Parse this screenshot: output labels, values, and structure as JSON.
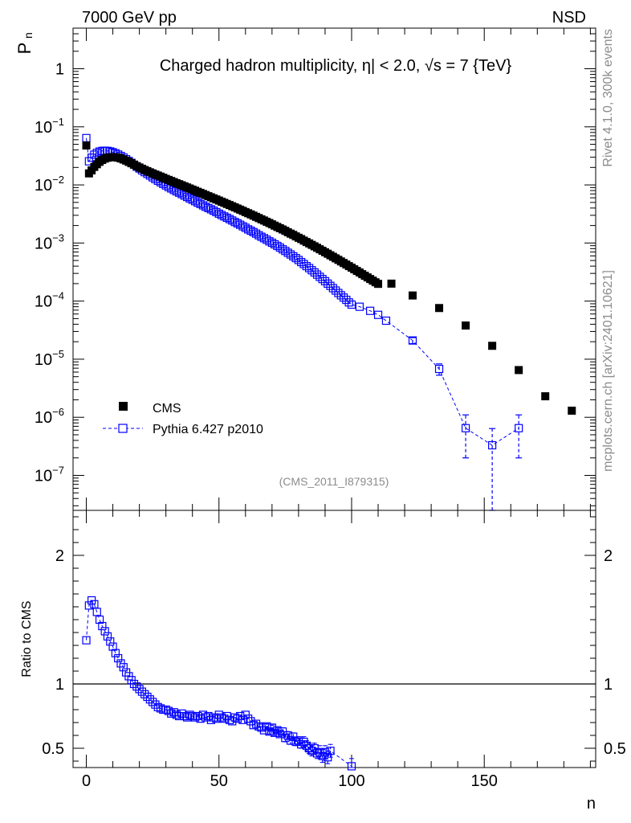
{
  "header": {
    "left": "7000 GeV pp",
    "right": "NSD"
  },
  "side_labels": {
    "version": "Rivet 4.1.0,  300k events",
    "url": "mcplots.cern.ch [arXiv:2401.10621]"
  },
  "chart_data": [
    {
      "type": "scatter",
      "title": "Charged hadron multiplicity, η| < 2.0, √s = 7 {TeV}",
      "analysis_tag": "(CMS_2011_I879315)",
      "ylabel": "P",
      "ylabel_sub": "n",
      "yscale": "log",
      "ylim": [
        2.5e-08,
        5
      ],
      "xlim": [
        -5,
        192
      ],
      "ytick_labels": [
        {
          "base": "10",
          "exp": "−7",
          "value": 1e-07
        },
        {
          "base": "10",
          "exp": "−6",
          "value": 1e-06
        },
        {
          "base": "10",
          "exp": "−5",
          "value": 1e-05
        },
        {
          "base": "10",
          "exp": "−4",
          "value": 0.0001
        },
        {
          "base": "10",
          "exp": "−3",
          "value": 0.001
        },
        {
          "base": "10",
          "exp": "−2",
          "value": 0.01
        },
        {
          "base": "10",
          "exp": "−1",
          "value": 0.1
        },
        {
          "base": "1",
          "exp": "",
          "value": 1
        }
      ],
      "legend": {
        "position": "lower-left",
        "entries": [
          "CMS",
          "Pythia 6.427 p2010"
        ]
      },
      "series": [
        {
          "name": "CMS",
          "marker": "filled-square",
          "color": "#000000",
          "x": [
            0,
            1,
            2,
            3,
            4,
            5,
            6,
            7,
            8,
            9,
            10,
            11,
            12,
            13,
            14,
            15,
            16,
            17,
            18,
            19,
            20,
            21,
            22,
            23,
            24,
            25,
            26,
            27,
            28,
            29,
            30,
            31,
            32,
            33,
            34,
            35,
            36,
            37,
            38,
            39,
            40,
            41,
            42,
            43,
            44,
            45,
            46,
            47,
            48,
            49,
            50,
            51,
            52,
            53,
            54,
            55,
            56,
            57,
            58,
            59,
            60,
            61,
            62,
            63,
            64,
            65,
            66,
            67,
            68,
            69,
            70,
            71,
            72,
            73,
            74,
            75,
            76,
            77,
            78,
            79,
            80,
            81,
            82,
            83,
            84,
            85,
            86,
            87,
            88,
            89,
            90,
            91,
            92,
            93,
            94,
            95,
            96,
            97,
            98,
            99,
            100,
            101,
            102,
            103,
            104,
            105,
            106,
            107,
            108,
            109,
            110,
            115,
            123,
            133,
            143,
            153,
            163,
            173,
            183
          ],
          "y": [
            0.0477,
            0.0158,
            0.0178,
            0.0204,
            0.0227,
            0.025,
            0.0269,
            0.0284,
            0.0294,
            0.03,
            0.0302,
            0.0299,
            0.0294,
            0.0285,
            0.0274,
            0.0262,
            0.0249,
            0.0236,
            0.0223,
            0.0211,
            0.02,
            0.019,
            0.0181,
            0.0173,
            0.0165,
            0.0158,
            0.0151,
            0.0145,
            0.0139,
            0.0133,
            0.0127,
            0.0122,
            0.0117,
            0.0112,
            0.0107,
            0.0103,
            0.00987,
            0.00946,
            0.00906,
            0.00868,
            0.00831,
            0.00796,
            0.00762,
            0.0073,
            0.00699,
            0.00669,
            0.0064,
            0.00613,
            0.00587,
            0.00562,
            0.00538,
            0.00514,
            0.00492,
            0.0047,
            0.0045,
            0.0043,
            0.00411,
            0.00392,
            0.00375,
            0.00358,
            0.00341,
            0.00326,
            0.00311,
            0.00296,
            0.00282,
            0.00269,
            0.00256,
            0.00244,
            0.00232,
            0.00221,
            0.0021,
            0.00199,
            0.00189,
            0.0018,
            0.00171,
            0.00162,
            0.00153,
            0.00145,
            0.00138,
            0.0013,
            0.00123,
            0.00117,
            0.0011,
            0.00104,
            0.000985,
            0.00093,
            0.000878,
            0.000828,
            0.000781,
            0.000736,
            0.000694,
            0.000654,
            0.000615,
            0.000579,
            0.000545,
            0.000513,
            0.000482,
            0.000453,
            0.000426,
            0.0004,
            0.000376,
            0.000353,
            0.000331,
            0.000311,
            0.000291,
            0.000273,
            0.000256,
            0.00024,
            0.000225,
            0.000211,
            0.000198,
            0.0002,
            0.000125,
            7.6e-05,
            3.8e-05,
            1.7e-05,
            6.5e-06,
            2.3e-06,
            1.3e-06
          ]
        },
        {
          "name": "Pythia 6.427 p2010",
          "marker": "open-square",
          "line": "dashed",
          "color": "#0000ff",
          "x": [
            0,
            1,
            2,
            3,
            4,
            5,
            6,
            7,
            8,
            9,
            10,
            11,
            12,
            13,
            14,
            15,
            16,
            17,
            18,
            19,
            20,
            21,
            22,
            23,
            24,
            25,
            26,
            27,
            28,
            29,
            30,
            31,
            32,
            33,
            34,
            35,
            36,
            37,
            38,
            39,
            40,
            41,
            42,
            43,
            44,
            45,
            46,
            47,
            48,
            49,
            50,
            51,
            52,
            53,
            54,
            55,
            56,
            57,
            58,
            59,
            60,
            61,
            62,
            63,
            64,
            65,
            66,
            67,
            68,
            69,
            70,
            71,
            72,
            73,
            74,
            75,
            76,
            77,
            78,
            79,
            80,
            81,
            82,
            83,
            84,
            85,
            86,
            87,
            88,
            89,
            90,
            91,
            92,
            93,
            94,
            95,
            96,
            97,
            98,
            99,
            100,
            103,
            107,
            110,
            113,
            123,
            133,
            143,
            153,
            163
          ],
          "y": [
            0.064,
            0.0255,
            0.0294,
            0.0332,
            0.0356,
            0.0375,
            0.0385,
            0.0388,
            0.0385,
            0.0377,
            0.0365,
            0.035,
            0.0333,
            0.0315,
            0.0296,
            0.0277,
            0.0258,
            0.024,
            0.0223,
            0.0206,
            0.0192,
            0.0178,
            0.0166,
            0.0155,
            0.0145,
            0.0135,
            0.0126,
            0.0118,
            0.0111,
            0.0104,
            0.0098,
            0.0092,
            0.0087,
            0.0082,
            0.00775,
            0.00735,
            0.00695,
            0.00655,
            0.0062,
            0.00585,
            0.00555,
            0.00525,
            0.00495,
            0.0047,
            0.00445,
            0.0042,
            0.004,
            0.0038,
            0.0036,
            0.0034,
            0.0032,
            0.00303,
            0.00287,
            0.00272,
            0.00258,
            0.00244,
            0.0023,
            0.00218,
            0.00206,
            0.00194,
            0.00183,
            0.00172,
            0.00163,
            0.00154,
            0.00145,
            0.00136,
            0.00128,
            0.00121,
            0.00114,
            0.00107,
            0.00101,
            0.00095,
            0.00089,
            0.000835,
            0.00078,
            0.00073,
            0.00068,
            0.000635,
            0.00059,
            0.00055,
            0.00051,
            0.00047,
            0.000435,
            0.0004,
            0.00037,
            0.00034,
            0.000312,
            0.000286,
            0.000262,
            0.00024,
            0.00022,
            0.0002,
            0.000183,
            0.000167,
            0.000152,
            0.000138,
            0.000126,
            0.000115,
            0.000105,
            9.5e-05,
            8.7e-05,
            8e-05,
            6.8e-05,
            5.8e-05,
            4.6e-05,
            2.1e-05,
            6.8e-06,
            6.5e-07,
            3.3e-07,
            6.5e-07
          ],
          "y_err": [
            0,
            0,
            0,
            0,
            0,
            0,
            0,
            0,
            0,
            0,
            0,
            0,
            0,
            0,
            0,
            0,
            0,
            0,
            0,
            0,
            0,
            0,
            0,
            0,
            0,
            0,
            0,
            0,
            0,
            0,
            0,
            0,
            0,
            0,
            0,
            0,
            0,
            0,
            0,
            0,
            0,
            0,
            0,
            0,
            0,
            0,
            0,
            0,
            0,
            0,
            0,
            0,
            0,
            0,
            0,
            0,
            0,
            0,
            0,
            0,
            0,
            0,
            0,
            0,
            0,
            0,
            0,
            0,
            0,
            0,
            0,
            0,
            0,
            0,
            0,
            0,
            0,
            0,
            0,
            0,
            0,
            0,
            0,
            0,
            0,
            0,
            0,
            0,
            0,
            0,
            0,
            0,
            0,
            0,
            0,
            0,
            0,
            0,
            0,
            0,
            0,
            0,
            0,
            0,
            0,
            2.5e-06,
            1.5e-06,
            4.5e-07,
            3.1e-07,
            4.5e-07
          ]
        }
      ]
    },
    {
      "type": "scatter",
      "ylabel": "Ratio to CMS",
      "xlabel": "n",
      "ylim": [
        0.35,
        2.35
      ],
      "xlim": [
        -5,
        192
      ],
      "reference_line": 1,
      "yticks": [
        0.5,
        1,
        2
      ],
      "ytick_labels": [
        "0.5",
        "1",
        "2"
      ],
      "xticks": [
        0,
        50,
        100,
        150
      ],
      "xtick_labels": [
        "0",
        "50",
        "100",
        "150"
      ],
      "series": [
        {
          "name": "Pythia 6.427 p2010 / CMS",
          "marker": "open-square",
          "line": "dashed",
          "color": "#0000ff",
          "x": [
            0,
            1,
            2,
            3,
            4,
            5,
            6,
            7,
            8,
            9,
            10,
            11,
            12,
            13,
            14,
            15,
            16,
            17,
            18,
            19,
            20,
            21,
            22,
            23,
            24,
            25,
            26,
            27,
            28,
            29,
            30,
            31,
            32,
            33,
            34,
            35,
            36,
            37,
            38,
            39,
            40,
            41,
            42,
            43,
            44,
            45,
            46,
            47,
            48,
            49,
            50,
            51,
            52,
            53,
            54,
            55,
            56,
            57,
            58,
            59,
            60,
            61,
            62,
            63,
            64,
            65,
            66,
            67,
            68,
            69,
            70,
            71,
            72,
            73,
            74,
            75,
            76,
            77,
            78,
            79,
            80,
            81,
            82,
            83,
            84,
            85,
            86,
            87,
            88,
            89,
            90,
            91,
            92,
            100
          ],
          "y": [
            1.34,
            1.61,
            1.65,
            1.62,
            1.56,
            1.5,
            1.45,
            1.41,
            1.37,
            1.33,
            1.29,
            1.24,
            1.2,
            1.16,
            1.13,
            1.09,
            1.06,
            1.03,
            1.0,
            0.98,
            0.96,
            0.94,
            0.92,
            0.9,
            0.88,
            0.86,
            0.84,
            0.82,
            0.81,
            0.8,
            0.8,
            0.79,
            0.77,
            0.78,
            0.76,
            0.75,
            0.77,
            0.75,
            0.74,
            0.76,
            0.75,
            0.74,
            0.75,
            0.73,
            0.76,
            0.74,
            0.75,
            0.72,
            0.74,
            0.73,
            0.76,
            0.74,
            0.73,
            0.75,
            0.72,
            0.71,
            0.74,
            0.73,
            0.75,
            0.72,
            0.76,
            0.73,
            0.71,
            0.68,
            0.69,
            0.67,
            0.66,
            0.64,
            0.67,
            0.63,
            0.66,
            0.62,
            0.64,
            0.61,
            0.63,
            0.58,
            0.6,
            0.56,
            0.59,
            0.55,
            0.56,
            0.53,
            0.55,
            0.52,
            0.5,
            0.48,
            0.5,
            0.46,
            0.47,
            0.44,
            0.47,
            0.43,
            0.48,
            0.36
          ],
          "y_err": [
            0,
            0,
            0,
            0,
            0,
            0,
            0,
            0,
            0,
            0,
            0,
            0,
            0,
            0,
            0,
            0,
            0,
            0,
            0,
            0,
            0,
            0,
            0,
            0,
            0,
            0,
            0,
            0,
            0,
            0,
            0,
            0,
            0,
            0,
            0,
            0,
            0,
            0,
            0,
            0,
            0,
            0,
            0,
            0,
            0,
            0,
            0,
            0,
            0,
            0,
            0,
            0,
            0,
            0,
            0,
            0,
            0,
            0,
            0,
            0,
            0,
            0,
            0,
            0,
            0,
            0,
            0,
            0,
            0.02,
            0.02,
            0.02,
            0.02,
            0.02,
            0.02,
            0.03,
            0.03,
            0.03,
            0.03,
            0.03,
            0.03,
            0.03,
            0.03,
            0.04,
            0.04,
            0.04,
            0.04,
            0.04,
            0.04,
            0.05,
            0.05,
            0.05,
            0.05,
            0.05,
            0.06
          ]
        }
      ]
    }
  ]
}
